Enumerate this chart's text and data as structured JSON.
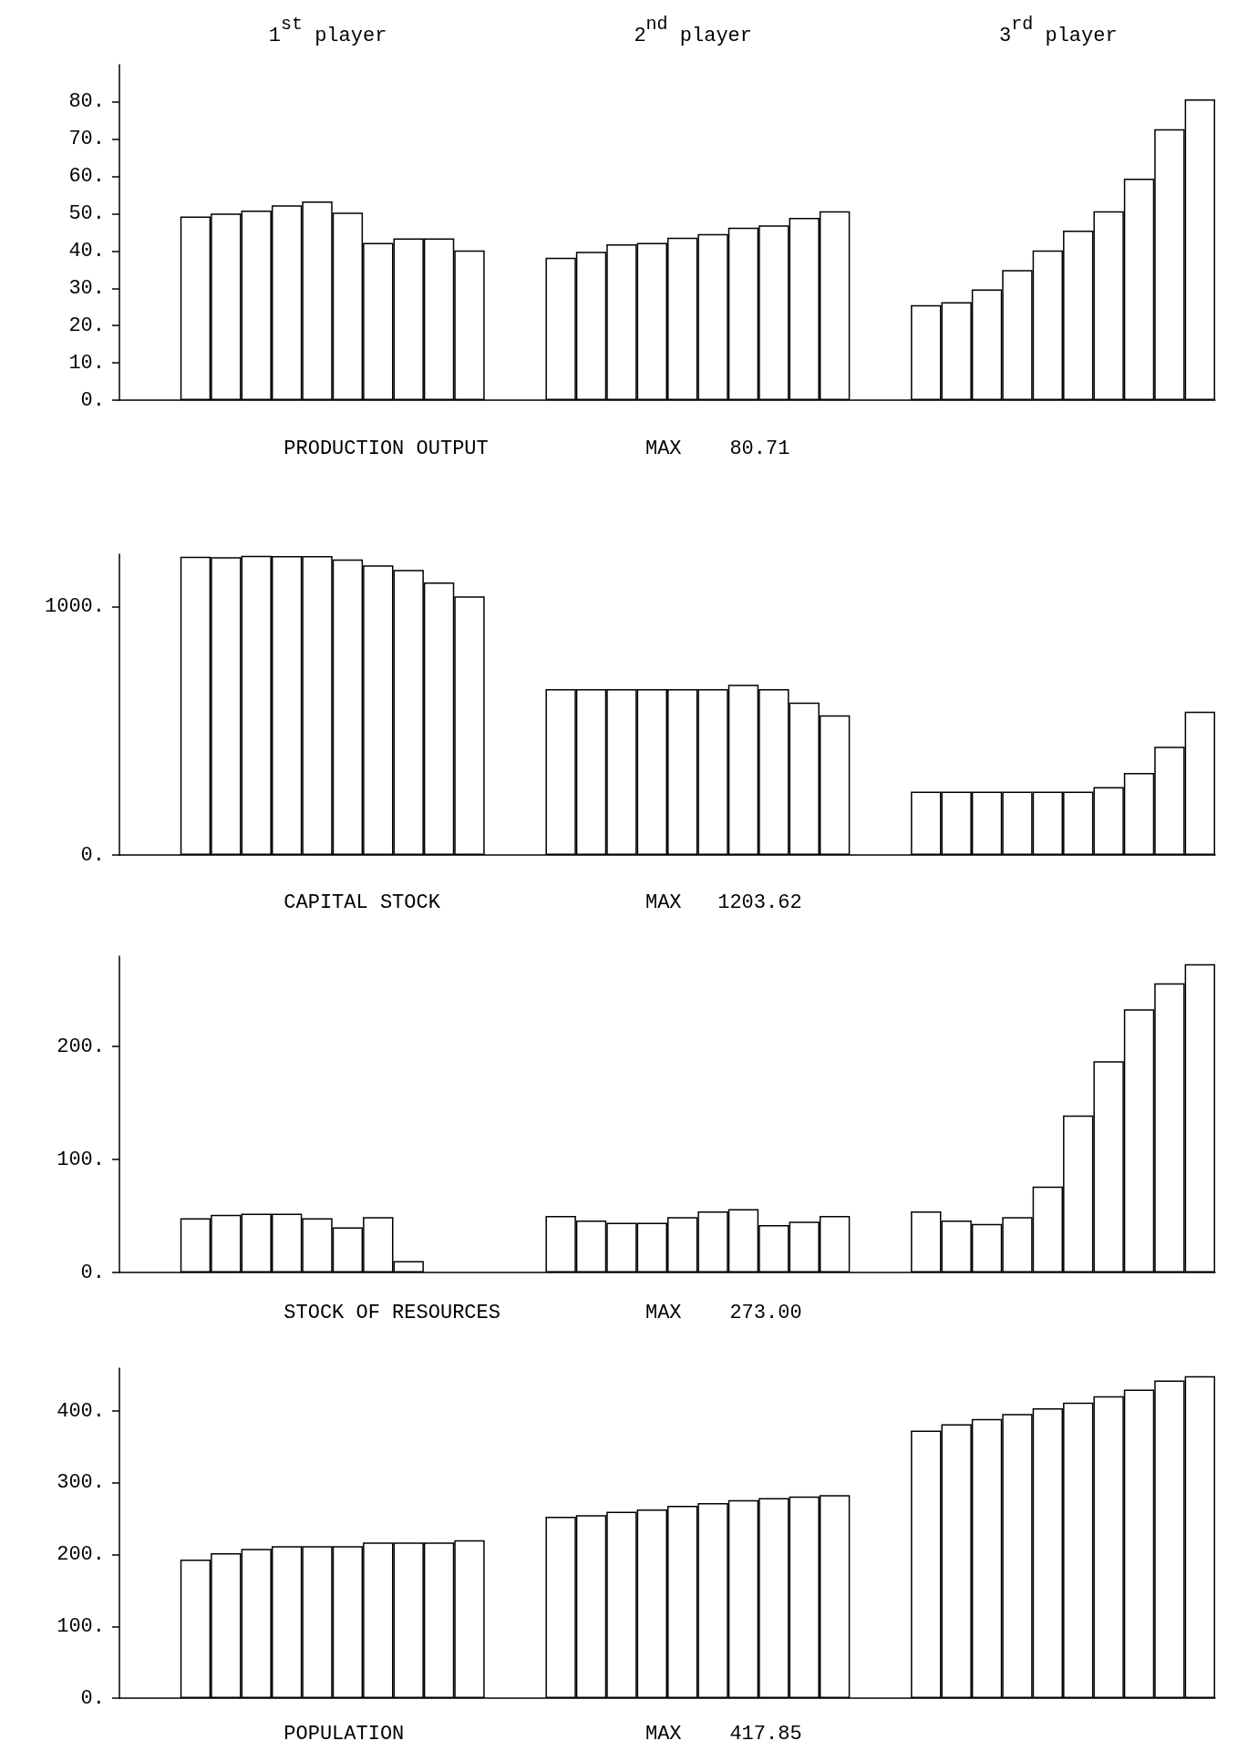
{
  "chart_data": [
    {
      "type": "bar",
      "xlabel": "PRODUCTION OUTPUT",
      "annotations": [
        "1$^{st}$ player",
        "2$^{nd}$ player",
        "3$^{rd}$ player",
        "MAX    80.71"
      ],
      "categories": [
        null,
        null,
        null,
        null,
        null,
        null,
        null,
        null,
        null,
        null,
        null,
        null,
        null,
        null,
        null,
        null,
        null,
        null,
        null,
        null,
        null,
        null,
        null,
        null,
        null,
        null,
        null,
        null,
        null,
        null,
        null,
        null,
        null,
        null,
        null,
        null
      ],
      "color": "#ffffff",
      "tick_labels": "y",
      "ylim": [
        0,
        90
      ],
      "yticks": [
        {
          "value": 0,
          "label": "0."
        },
        {
          "value": 10,
          "label": "10."
        },
        {
          "value": 20,
          "label": "20."
        },
        {
          "value": 30,
          "label": "30."
        },
        {
          "value": 40,
          "label": "40."
        },
        {
          "value": 50,
          "label": "50."
        },
        {
          "value": 60,
          "label": "60."
        },
        {
          "value": 70,
          "label": "70."
        },
        {
          "value": 80,
          "label": "80."
        }
      ],
      "values": [
        null,
        null,
        49.3,
        50.1,
        50.9,
        52.3,
        53.3,
        50.3,
        42.2,
        43.4,
        43.4,
        40.2,
        null,
        null,
        38.2,
        39.8,
        41.8,
        42.2,
        43.6,
        44.6,
        46.3,
        46.9,
        48.9,
        50.7,
        null,
        null,
        25.5,
        26.3,
        29.7,
        34.9,
        40.2,
        45.5,
        50.7,
        59.4,
        72.7,
        80.7
      ]
    },
    {
      "type": "bar",
      "xlabel": "CAPITAL STOCK",
      "annotations": [
        "MAX   1203.62"
      ],
      "categories": [
        null,
        null,
        null,
        null,
        null,
        null,
        null,
        null,
        null,
        null,
        null,
        null,
        null,
        null,
        null,
        null,
        null,
        null,
        null,
        null,
        null,
        null,
        null,
        null,
        null,
        null,
        null,
        null,
        null,
        null,
        null,
        null,
        null,
        null,
        null,
        null
      ],
      "color": "#ffffff",
      "tick_labels": "y",
      "ylim": [
        0,
        1210
      ],
      "yticks": [
        {
          "value": 0,
          "label": "0."
        },
        {
          "value": 1000,
          "label": "1000."
        }
      ],
      "values": [
        null,
        null,
        1200,
        1198,
        1204,
        1203,
        1203,
        1189,
        1165,
        1147,
        1096,
        1040,
        null,
        null,
        667,
        667,
        667,
        667,
        667,
        667,
        685,
        667,
        613,
        562,
        null,
        null,
        255,
        255,
        255,
        255,
        255,
        255,
        273,
        330,
        435,
        577
      ]
    },
    {
      "type": "bar",
      "xlabel": "STOCK OF RESOURCES",
      "annotations": [
        "MAX    273.00"
      ],
      "categories": [
        null,
        null,
        null,
        null,
        null,
        null,
        null,
        null,
        null,
        null,
        null,
        null,
        null,
        null,
        null,
        null,
        null,
        null,
        null,
        null,
        null,
        null,
        null,
        null,
        null,
        null,
        null,
        null,
        null,
        null,
        null,
        null,
        null,
        null,
        null,
        null
      ],
      "color": "#ffffff",
      "tick_labels": "y",
      "ylim": [
        0,
        280
      ],
      "yticks": [
        {
          "value": 0,
          "label": "0."
        },
        {
          "value": 100,
          "label": "100."
        },
        {
          "value": 200,
          "label": "200."
        }
      ],
      "values": [
        null,
        null,
        48,
        51,
        52,
        52,
        48,
        40,
        49,
        10,
        null,
        null,
        null,
        null,
        50,
        46,
        44,
        44,
        49,
        54,
        56,
        42,
        45,
        50,
        null,
        null,
        54,
        46,
        43,
        49,
        76,
        139,
        187,
        233,
        256,
        273
      ]
    },
    {
      "type": "bar",
      "xlabel": "POPULATION",
      "annotations": [
        "MAX    417.85"
      ],
      "categories": [
        null,
        null,
        null,
        null,
        null,
        null,
        null,
        null,
        null,
        null,
        null,
        null,
        null,
        null,
        null,
        null,
        null,
        null,
        null,
        null,
        null,
        null,
        null,
        null,
        null,
        null,
        null,
        null,
        null,
        null,
        null,
        null,
        null,
        null,
        null,
        null
      ],
      "color": "#ffffff",
      "tick_labels": "y",
      "ylim": [
        0,
        460
      ],
      "yticks": [
        {
          "value": 0,
          "label": "0."
        },
        {
          "value": 100,
          "label": "100."
        },
        {
          "value": 200,
          "label": "200."
        },
        {
          "value": 300,
          "label": "300."
        },
        {
          "value": 400,
          "label": "400."
        }
      ],
      "values": [
        null,
        null,
        193,
        202,
        208,
        212,
        212,
        212,
        217,
        217,
        217,
        220,
        null,
        null,
        253,
        255,
        260,
        263,
        268,
        272,
        276,
        279,
        281,
        283,
        null,
        null,
        373,
        382,
        389,
        396,
        404,
        412,
        421,
        430,
        443,
        449
      ]
    }
  ]
}
